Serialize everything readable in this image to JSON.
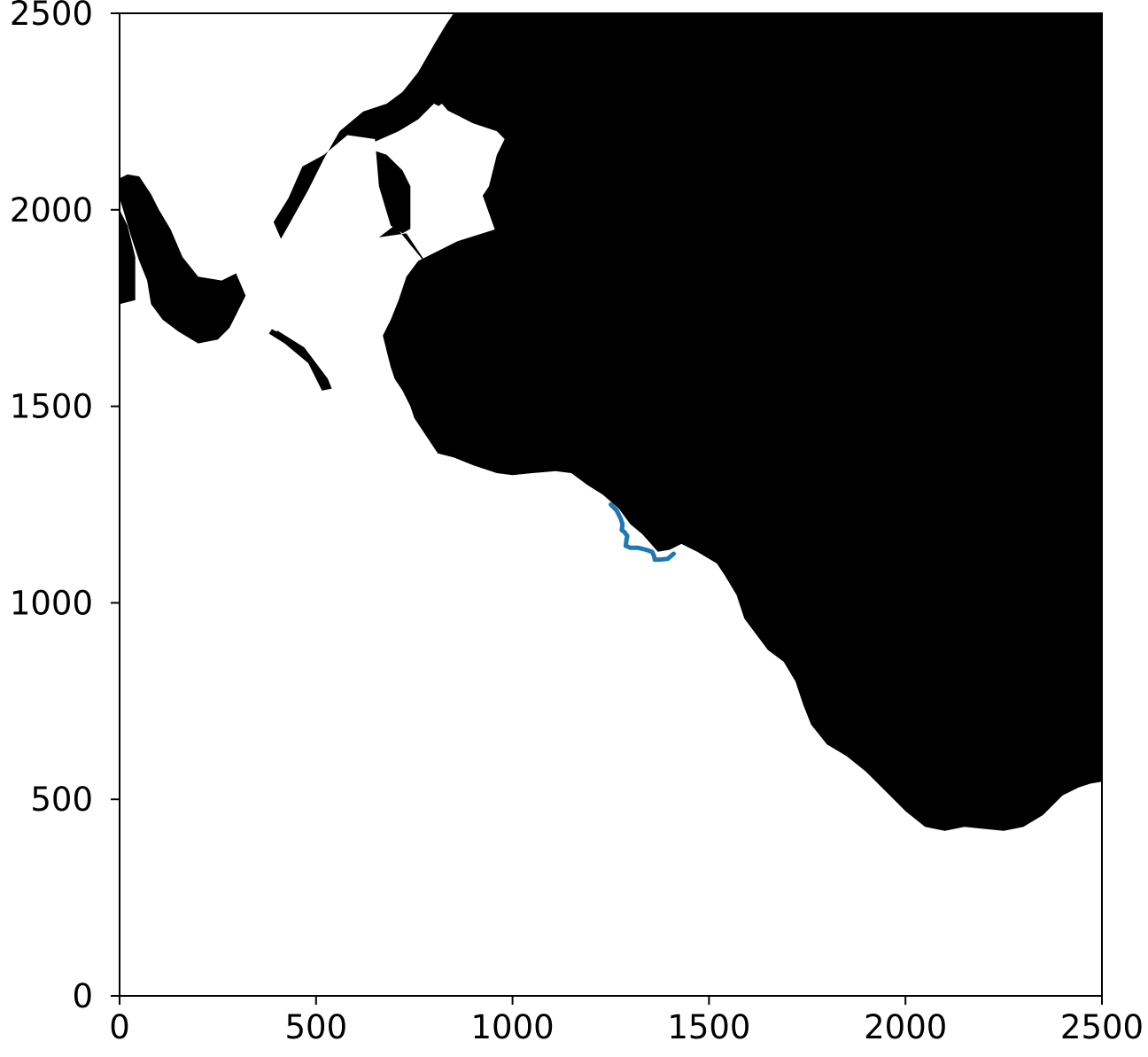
{
  "chart_data": {
    "type": "line",
    "title": "",
    "xlabel": "",
    "ylabel": "",
    "xlim": [
      0,
      2500
    ],
    "ylim": [
      0,
      2500
    ],
    "grid": false,
    "xticks": [
      0,
      500,
      1000,
      1500,
      2000,
      2500
    ],
    "yticks": [
      0,
      500,
      1000,
      1500,
      2000,
      2500
    ],
    "background": {
      "description_colors": {
        "land": "#000000",
        "water": "#ffffff"
      },
      "land_main": [
        [
          155,
          2500
        ],
        [
          2500,
          2500
        ],
        [
          2500,
          545
        ],
        [
          2470,
          540
        ],
        [
          2440,
          530
        ],
        [
          2400,
          510
        ],
        [
          2350,
          460
        ],
        [
          2300,
          430
        ],
        [
          2250,
          420
        ],
        [
          2200,
          425
        ],
        [
          2150,
          430
        ],
        [
          2100,
          420
        ],
        [
          2050,
          430
        ],
        [
          2000,
          470
        ],
        [
          1950,
          520
        ],
        [
          1900,
          570
        ],
        [
          1850,
          610
        ],
        [
          1800,
          640
        ],
        [
          1760,
          690
        ],
        [
          1740,
          740
        ],
        [
          1720,
          800
        ],
        [
          1690,
          850
        ],
        [
          1650,
          880
        ],
        [
          1620,
          920
        ],
        [
          1590,
          960
        ],
        [
          1570,
          1020
        ],
        [
          1540,
          1070
        ],
        [
          1520,
          1100
        ],
        [
          1470,
          1130
        ],
        [
          1430,
          1150
        ],
        [
          1400,
          1135
        ],
        [
          1370,
          1130
        ],
        [
          1330,
          1175
        ],
        [
          1300,
          1200
        ],
        [
          1270,
          1240
        ],
        [
          1230,
          1275
        ],
        [
          1190,
          1300
        ],
        [
          1150,
          1330
        ],
        [
          1110,
          1335
        ],
        [
          1050,
          1330
        ],
        [
          1000,
          1325
        ],
        [
          960,
          1330
        ],
        [
          900,
          1350
        ],
        [
          850,
          1370
        ],
        [
          810,
          1380
        ],
        [
          790,
          1410
        ],
        [
          770,
          1440
        ],
        [
          750,
          1470
        ],
        [
          740,
          1500
        ],
        [
          720,
          1540
        ],
        [
          700,
          1570
        ],
        [
          690,
          1600
        ],
        [
          680,
          1640
        ],
        [
          670,
          1680
        ],
        [
          690,
          1720
        ],
        [
          710,
          1770
        ],
        [
          730,
          1830
        ],
        [
          760,
          1870
        ],
        [
          860,
          1920
        ],
        [
          955,
          1950
        ],
        [
          855,
          2230
        ],
        [
          820,
          2270
        ],
        [
          780,
          2240
        ],
        [
          800,
          2200
        ],
        [
          780,
          2160
        ],
        [
          800,
          2080
        ],
        [
          790,
          1980
        ],
        [
          720,
          1940
        ],
        [
          690,
          1960
        ],
        [
          660,
          2060
        ],
        [
          650,
          2180
        ],
        [
          580,
          2190
        ],
        [
          520,
          2140
        ],
        [
          465,
          2110
        ],
        [
          430,
          2030
        ],
        [
          380,
          1950
        ],
        [
          350,
          1880
        ],
        [
          330,
          1800
        ],
        [
          300,
          1740
        ],
        [
          280,
          1700
        ],
        [
          250,
          1670
        ],
        [
          200,
          1660
        ],
        [
          150,
          1690
        ],
        [
          110,
          1720
        ],
        [
          80,
          1760
        ],
        [
          70,
          1820
        ],
        [
          50,
          1870
        ],
        [
          30,
          1930
        ],
        [
          15,
          1980
        ],
        [
          0,
          2030
        ],
        [
          0,
          2080
        ],
        [
          20,
          2090
        ],
        [
          50,
          2085
        ],
        [
          60,
          2070
        ],
        [
          80,
          2040
        ],
        [
          100,
          2000
        ],
        [
          130,
          1950
        ],
        [
          160,
          1880
        ],
        [
          200,
          1830
        ],
        [
          260,
          1820
        ],
        [
          300,
          1840
        ],
        [
          350,
          1860
        ],
        [
          390,
          1890
        ],
        [
          430,
          1960
        ],
        [
          480,
          2050
        ],
        [
          520,
          2130
        ],
        [
          560,
          2200
        ],
        [
          620,
          2250
        ],
        [
          680,
          2270
        ],
        [
          720,
          2300
        ],
        [
          760,
          2350
        ],
        [
          800,
          2420
        ],
        [
          830,
          2470
        ],
        [
          850,
          2500
        ]
      ],
      "land_pier_1": [
        [
          660,
          1930
        ],
        [
          730,
          1940
        ],
        [
          770,
          1880
        ],
        [
          790,
          1850
        ],
        [
          700,
          1960
        ]
      ],
      "land_left_sliver": [
        [
          0,
          1760
        ],
        [
          40,
          1770
        ],
        [
          40,
          1880
        ],
        [
          20,
          1960
        ],
        [
          0,
          2000
        ]
      ],
      "land_breakwater": [
        [
          390,
          1700
        ],
        [
          470,
          1650
        ],
        [
          530,
          1570
        ],
        [
          540,
          1545
        ],
        [
          515,
          1540
        ],
        [
          480,
          1610
        ],
        [
          420,
          1660
        ],
        [
          380,
          1685
        ]
      ],
      "water_channel_1": [
        [
          40,
          2500
        ],
        [
          160,
          2500
        ],
        [
          470,
          1790
        ],
        [
          440,
          1740
        ],
        [
          400,
          1690
        ],
        [
          360,
          1710
        ],
        [
          330,
          1760
        ],
        [
          300,
          1830
        ]
      ],
      "water_dock": [
        [
          620,
          2160
        ],
        [
          680,
          2140
        ],
        [
          720,
          2100
        ],
        [
          740,
          2060
        ],
        [
          740,
          1950
        ],
        [
          850,
          1960
        ],
        [
          900,
          2000
        ],
        [
          940,
          2060
        ],
        [
          960,
          2140
        ],
        [
          980,
          2180
        ],
        [
          960,
          2200
        ],
        [
          900,
          2220
        ],
        [
          860,
          2240
        ],
        [
          800,
          2270
        ],
        [
          760,
          2230
        ],
        [
          710,
          2200
        ]
      ]
    },
    "series": [
      {
        "name": "",
        "color": "#1f77b4",
        "x": [
          1250,
          1265,
          1275,
          1280,
          1278,
          1285,
          1292,
          1290,
          1288,
          1300,
          1320,
          1340,
          1355,
          1360,
          1362,
          1375,
          1395,
          1410
        ],
        "y": [
          1250,
          1235,
          1215,
          1200,
          1185,
          1180,
          1170,
          1160,
          1145,
          1140,
          1140,
          1135,
          1130,
          1120,
          1110,
          1110,
          1112,
          1125
        ]
      }
    ]
  }
}
